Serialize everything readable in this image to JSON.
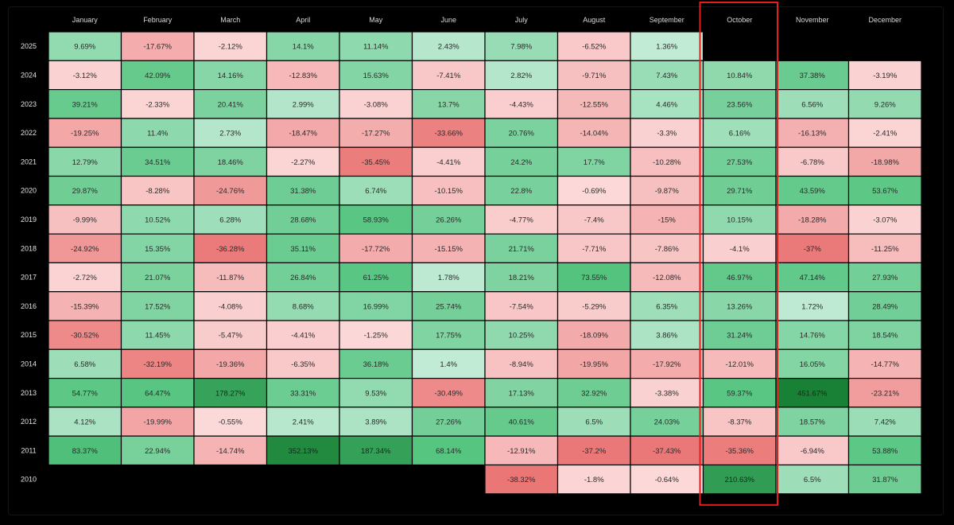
{
  "chart_data": {
    "type": "heatmap",
    "title": "",
    "months": [
      "January",
      "February",
      "March",
      "April",
      "May",
      "June",
      "July",
      "August",
      "September",
      "October",
      "November",
      "December"
    ],
    "highlight_month": "October",
    "highlight_color": "#e02020",
    "rows": [
      {
        "year": "2025",
        "values": [
          9.69,
          -17.67,
          -2.12,
          14.1,
          11.14,
          2.43,
          7.98,
          -6.52,
          1.36,
          null,
          null,
          null
        ],
        "labels": [
          "9.69%",
          "-17.67%",
          "-2.12%",
          "14.1%",
          "11.14%",
          "2.43%",
          "7.98%",
          "-6.52%",
          "1.36%",
          "",
          "",
          ""
        ]
      },
      {
        "year": "2024",
        "values": [
          -3.12,
          42.09,
          14.16,
          -12.83,
          15.63,
          -7.41,
          2.82,
          -9.71,
          7.43,
          10.84,
          37.38,
          -3.19
        ],
        "labels": [
          "-3.12%",
          "42.09%",
          "14.16%",
          "-12.83%",
          "15.63%",
          "-7.41%",
          "2.82%",
          "-9.71%",
          "7.43%",
          "10.84%",
          "37.38%",
          "-3.19%"
        ]
      },
      {
        "year": "2023",
        "values": [
          39.21,
          -2.33,
          20.41,
          2.99,
          -3.08,
          13.7,
          -4.43,
          -12.55,
          4.46,
          23.56,
          6.56,
          9.26
        ],
        "labels": [
          "39.21%",
          "-2.33%",
          "20.41%",
          "2.99%",
          "-3.08%",
          "13.7%",
          "-4.43%",
          "-12.55%",
          "4.46%",
          "23.56%",
          "6.56%",
          "9.26%"
        ]
      },
      {
        "year": "2022",
        "values": [
          -19.25,
          11.4,
          2.73,
          -18.47,
          -17.27,
          -33.66,
          20.76,
          -14.04,
          -3.3,
          6.16,
          -16.13,
          -2.41
        ],
        "labels": [
          "-19.25%",
          "11.4%",
          "2.73%",
          "-18.47%",
          "-17.27%",
          "-33.66%",
          "20.76%",
          "-14.04%",
          "-3.3%",
          "6.16%",
          "-16.13%",
          "-2.41%"
        ]
      },
      {
        "year": "2021",
        "values": [
          12.79,
          34.51,
          18.46,
          -2.27,
          -35.45,
          -4.41,
          24.2,
          17.7,
          -10.28,
          27.53,
          -6.78,
          -18.98
        ],
        "labels": [
          "12.79%",
          "34.51%",
          "18.46%",
          "-2.27%",
          "-35.45%",
          "-4.41%",
          "24.2%",
          "17.7%",
          "-10.28%",
          "27.53%",
          "-6.78%",
          "-18.98%"
        ]
      },
      {
        "year": "2020",
        "values": [
          29.87,
          -8.28,
          -24.76,
          31.38,
          6.74,
          -10.15,
          22.8,
          -0.69,
          -9.87,
          29.71,
          43.59,
          53.67
        ],
        "labels": [
          "29.87%",
          "-8.28%",
          "-24.76%",
          "31.38%",
          "6.74%",
          "-10.15%",
          "22.8%",
          "-0.69%",
          "-9.87%",
          "29.71%",
          "43.59%",
          "53.67%"
        ]
      },
      {
        "year": "2019",
        "values": [
          -9.99,
          10.52,
          6.28,
          28.68,
          58.93,
          26.26,
          -4.77,
          -7.4,
          -15,
          10.15,
          -18.28,
          -3.07
        ],
        "labels": [
          "-9.99%",
          "10.52%",
          "6.28%",
          "28.68%",
          "58.93%",
          "26.26%",
          "-4.77%",
          "-7.4%",
          "-15%",
          "10.15%",
          "-18.28%",
          "-3.07%"
        ]
      },
      {
        "year": "2018",
        "values": [
          -24.92,
          15.35,
          -36.28,
          35.11,
          -17.72,
          -15.15,
          21.71,
          -7.71,
          -7.86,
          -4.1,
          -37,
          -11.25
        ],
        "labels": [
          "-24.92%",
          "15.35%",
          "-36.28%",
          "35.11%",
          "-17.72%",
          "-15.15%",
          "21.71%",
          "-7.71%",
          "-7.86%",
          "-4.1%",
          "-37%",
          "-11.25%"
        ]
      },
      {
        "year": "2017",
        "values": [
          -2.72,
          21.07,
          -11.87,
          26.84,
          61.25,
          1.78,
          18.21,
          73.55,
          -12.08,
          46.97,
          47.14,
          27.93
        ],
        "labels": [
          "-2.72%",
          "21.07%",
          "-11.87%",
          "26.84%",
          "61.25%",
          "1.78%",
          "18.21%",
          "73.55%",
          "-12.08%",
          "46.97%",
          "47.14%",
          "27.93%"
        ]
      },
      {
        "year": "2016",
        "values": [
          -15.39,
          17.52,
          -4.08,
          8.68,
          16.99,
          25.74,
          -7.54,
          -5.29,
          6.35,
          13.26,
          1.72,
          28.49
        ],
        "labels": [
          "-15.39%",
          "17.52%",
          "-4.08%",
          "8.68%",
          "16.99%",
          "25.74%",
          "-7.54%",
          "-5.29%",
          "6.35%",
          "13.26%",
          "1.72%",
          "28.49%"
        ]
      },
      {
        "year": "2015",
        "values": [
          -30.52,
          11.45,
          -5.47,
          -4.41,
          -1.25,
          17.75,
          10.25,
          -18.09,
          3.86,
          31.24,
          14.76,
          18.54
        ],
        "labels": [
          "-30.52%",
          "11.45%",
          "-5.47%",
          "-4.41%",
          "-1.25%",
          "17.75%",
          "10.25%",
          "-18.09%",
          "3.86%",
          "31.24%",
          "14.76%",
          "18.54%"
        ]
      },
      {
        "year": "2014",
        "values": [
          6.58,
          -32.19,
          -19.36,
          -6.35,
          36.18,
          1.4,
          -8.94,
          -19.95,
          -17.92,
          -12.01,
          16.05,
          -14.77
        ],
        "labels": [
          "6.58%",
          "-32.19%",
          "-19.36%",
          "-6.35%",
          "36.18%",
          "1.4%",
          "-8.94%",
          "-19.95%",
          "-17.92%",
          "-12.01%",
          "16.05%",
          "-14.77%"
        ]
      },
      {
        "year": "2013",
        "values": [
          54.77,
          64.47,
          178.27,
          33.31,
          9.53,
          -30.49,
          17.13,
          32.92,
          -3.38,
          59.37,
          451.67,
          -23.21
        ],
        "labels": [
          "54.77%",
          "64.47%",
          "178.27%",
          "33.31%",
          "9.53%",
          "-30.49%",
          "17.13%",
          "32.92%",
          "-3.38%",
          "59.37%",
          "451.67%",
          "-23.21%"
        ]
      },
      {
        "year": "2012",
        "values": [
          4.12,
          -19.99,
          -0.55,
          2.41,
          3.89,
          27.26,
          40.61,
          6.5,
          24.03,
          -8.37,
          18.57,
          7.42
        ],
        "labels": [
          "4.12%",
          "-19.99%",
          "-0.55%",
          "2.41%",
          "3.89%",
          "27.26%",
          "40.61%",
          "6.5%",
          "24.03%",
          "-8.37%",
          "18.57%",
          "7.42%"
        ]
      },
      {
        "year": "2011",
        "values": [
          83.37,
          22.94,
          -14.74,
          352.13,
          187.34,
          68.14,
          -12.91,
          -37.2,
          -37.43,
          -35.36,
          -6.94,
          53.88
        ],
        "labels": [
          "83.37%",
          "22.94%",
          "-14.74%",
          "352.13%",
          "187.34%",
          "68.14%",
          "-12.91%",
          "-37.2%",
          "-37.43%",
          "-35.36%",
          "-6.94%",
          "53.88%"
        ]
      },
      {
        "year": "2010",
        "values": [
          null,
          null,
          null,
          null,
          null,
          null,
          -38.32,
          -1.8,
          -0.64,
          210.63,
          6.5,
          31.87
        ],
        "labels": [
          "",
          "",
          "",
          "",
          "",
          "",
          "-38.32%",
          "-1.8%",
          "-0.64%",
          "210.63%",
          "6.5%",
          "31.87%"
        ]
      }
    ]
  }
}
